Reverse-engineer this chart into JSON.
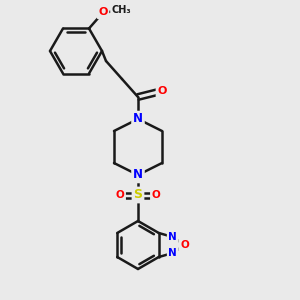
{
  "background_color": "#eaeaea",
  "line_color": "#1a1a1a",
  "bond_width": 1.8,
  "atom_colors": {
    "N": "#0000ff",
    "O": "#ff0000",
    "S": "#cccc00",
    "C": "#1a1a1a"
  },
  "figsize": [
    3.0,
    3.0
  ],
  "dpi": 100
}
